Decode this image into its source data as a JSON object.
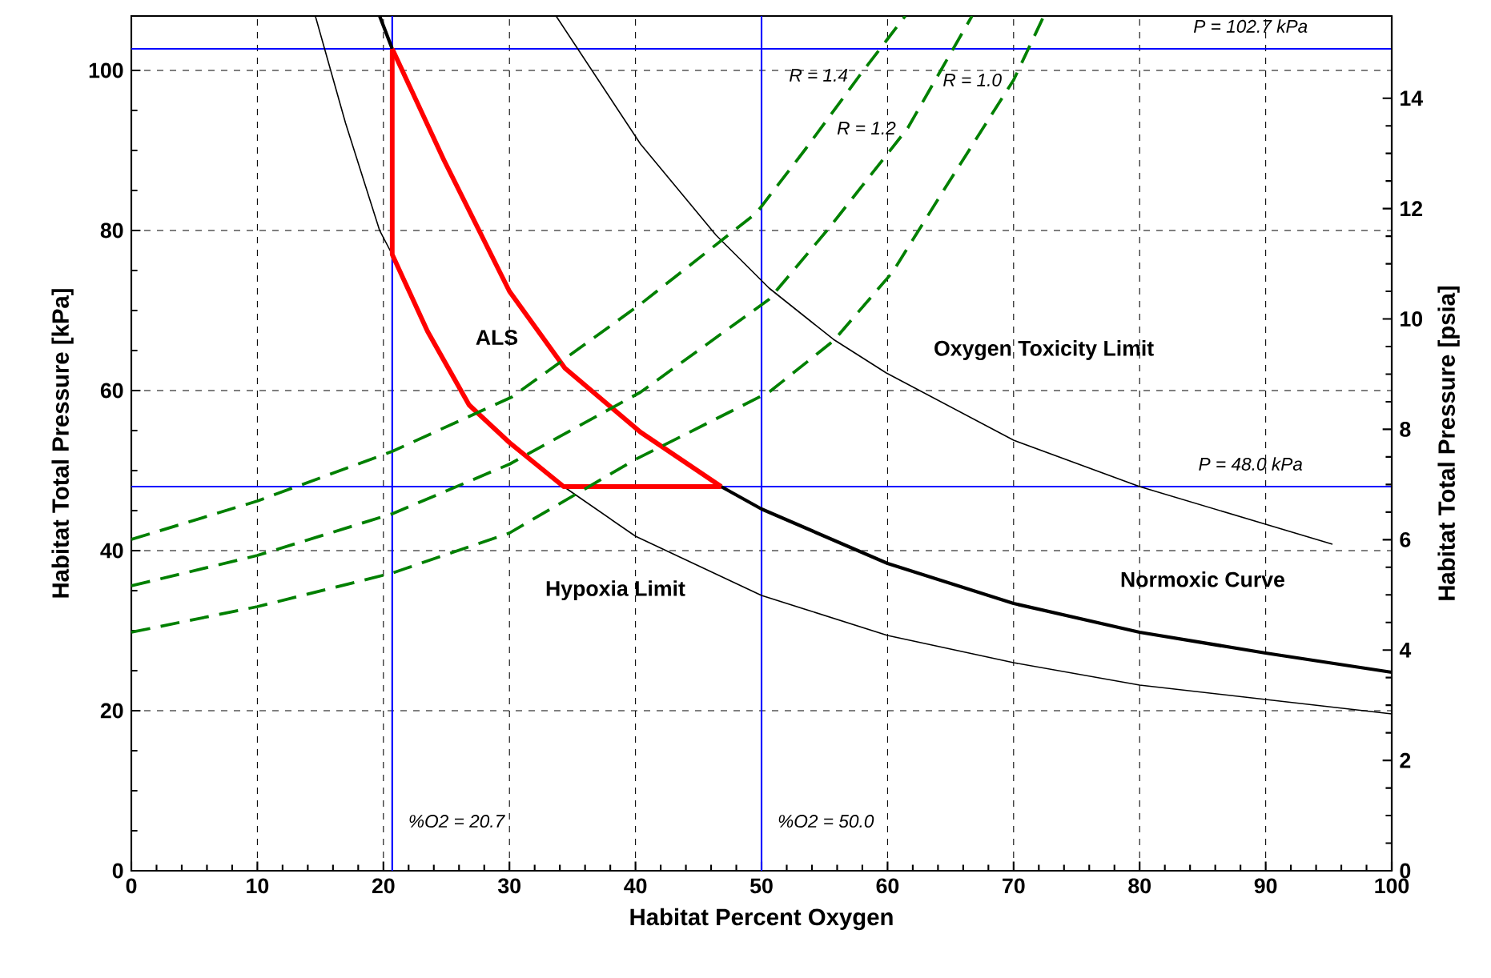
{
  "chart_data": {
    "type": "line",
    "xlabel": "Habitat Percent Oxygen",
    "ylabel": "Habitat Total Pressure [kPa]",
    "y2label": "Habitat Total Pressure [psia]",
    "xlim": [
      0,
      100
    ],
    "ylim": [
      0,
      106.8
    ],
    "xticks": [
      0,
      10,
      20,
      30,
      40,
      50,
      60,
      70,
      80,
      90,
      100
    ],
    "yticks": [
      0,
      20,
      40,
      60,
      80,
      100
    ],
    "y2lim": [
      0,
      15.49
    ],
    "y2ticks": [
      0,
      2,
      4,
      6,
      8,
      10,
      12,
      14
    ],
    "grid": true,
    "line_style": "solid",
    "ref_lines": [
      {
        "axis": "x",
        "value": 20.7,
        "label": "%O2 = 20.7",
        "color": "#0000ff"
      },
      {
        "axis": "x",
        "value": 50.0,
        "label": "%O2 = 50.0",
        "color": "#0000ff"
      },
      {
        "axis": "y",
        "value": 102.7,
        "label": "P = 102.7 kPa",
        "color": "#0000ff"
      },
      {
        "axis": "y",
        "value": 48.0,
        "label": "P = 48.0 kPa",
        "color": "#0000ff"
      }
    ],
    "annotations": [
      "ALS",
      "Oxygen Toxicity Limit",
      "Hypoxia Limit",
      "Normoxic Curve"
    ],
    "series": [
      {
        "color": "#000000",
        "x": [
          14.6,
          17,
          19.7,
          20.7,
          27,
          34.3,
          40,
          50,
          60,
          70,
          80,
          90,
          100
        ],
        "values": [
          106.8,
          93.4,
          80,
          77,
          null,
          48,
          41.8,
          34.4,
          29.4,
          26,
          23.2,
          21.4,
          19.6
        ]
      },
      {
        "color": "#000000",
        "x": [
          33.7,
          40.4,
          46.4,
          50.6,
          55.7,
          59.9,
          70,
          80,
          90.2,
          95.3
        ],
        "values": [
          106.8,
          90.8,
          79.4,
          72.8,
          66.4,
          62.2,
          53.8,
          48,
          43.2,
          40.8
        ]
      },
      {
        "color": "#000000",
        "x": [
          19.7,
          20.7,
          33,
          46.8,
          50,
          60,
          70,
          80,
          90,
          100
        ],
        "values": [
          106.8,
          102.7,
          null,
          48,
          45.2,
          38.4,
          33.4,
          29.8,
          27.2,
          24.8
        ]
      },
      {
        "color": "#ff0000",
        "x": [
          20.7,
          24.8,
          30,
          34.4,
          40.4,
          46.8
        ],
        "values": [
          102.7,
          88.8,
          72.4,
          62.8,
          54.8,
          48
        ]
      },
      {
        "color": "#ff0000",
        "x": [
          20.7,
          20.7,
          23.5,
          26.8,
          30,
          34.3,
          46.8
        ],
        "values": [
          102.7,
          77,
          67.4,
          58.2,
          53.5,
          48,
          48
        ]
      },
      {
        "name": "R = 1.4",
        "color": "#008000",
        "line_style": "dashed",
        "x": [
          0,
          10,
          20.7,
          30.2,
          40.4,
          49.6,
          53.5,
          57.8,
          61.4
        ],
        "values": [
          41.4,
          46.2,
          52.4,
          59.2,
          70.8,
          82.2,
          90.2,
          99.4,
          106.8
        ]
      },
      {
        "name": "R = 1.2",
        "color": "#008000",
        "line_style": "dashed",
        "x": [
          0,
          10,
          20.7,
          30,
          40.4,
          50.6,
          55.3,
          61.6,
          66.7
        ],
        "values": [
          35.6,
          39.4,
          44.6,
          50.8,
          59.8,
          71.4,
          80.2,
          92.8,
          106.8
        ]
      },
      {
        "name": "R = 1.0",
        "color": "#008000",
        "line_style": "dashed",
        "x": [
          0,
          10,
          20.7,
          30,
          40,
          50.6,
          55.7,
          60.4,
          64.6,
          70,
          72.4
        ],
        "values": [
          29.8,
          33,
          37.2,
          42.2,
          51.4,
          59.8,
          66.2,
          74.8,
          85.4,
          98.8,
          106.8
        ]
      }
    ]
  }
}
